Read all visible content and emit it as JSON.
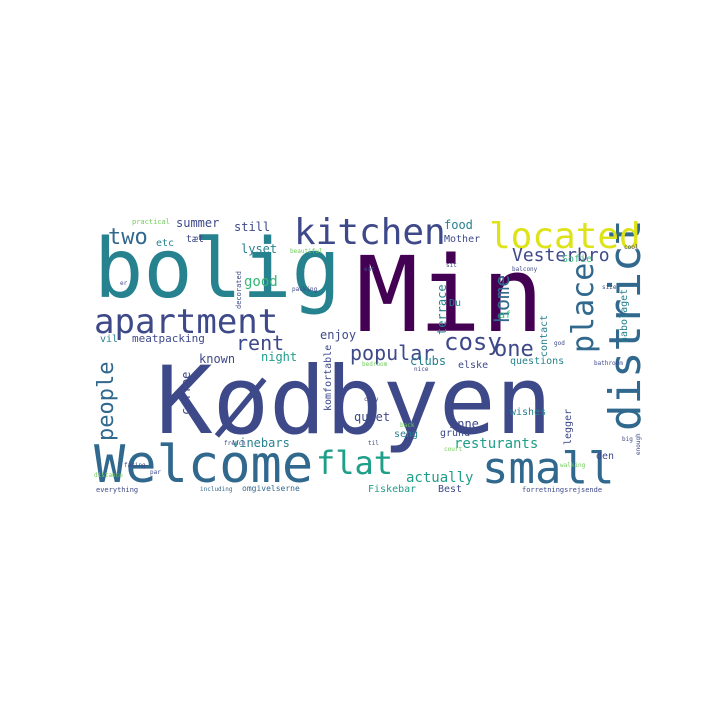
{
  "palette": {
    "deep_purple": "#440154",
    "indigo": "#3e4989",
    "blue": "#31688e",
    "teal": "#26828e",
    "green_teal": "#1f9e89",
    "green": "#35b779",
    "light_green": "#6ece58",
    "yellow": "#dde318",
    "background": "#ffffff"
  },
  "word_cloud": {
    "words": [
      {
        "text": "Kødbyen"
      },
      {
        "text": "Min"
      },
      {
        "text": "bolig"
      },
      {
        "text": "Welcome"
      },
      {
        "text": "small"
      },
      {
        "text": "district"
      },
      {
        "text": "kitchen"
      },
      {
        "text": "located"
      },
      {
        "text": "apartment"
      },
      {
        "text": "flat"
      },
      {
        "text": "place"
      },
      {
        "text": "home"
      },
      {
        "text": "cosy"
      },
      {
        "text": "one"
      },
      {
        "text": "popular"
      },
      {
        "text": "rent"
      },
      {
        "text": "two"
      },
      {
        "text": "people"
      },
      {
        "text": "Vesterbro"
      },
      {
        "text": "resturants"
      },
      {
        "text": "actually"
      },
      {
        "text": "summer"
      },
      {
        "text": "still"
      },
      {
        "text": "food"
      },
      {
        "text": "good"
      },
      {
        "text": "lyset"
      },
      {
        "text": "etc"
      },
      {
        "text": "tæt"
      },
      {
        "text": "Mother"
      },
      {
        "text": "Sofie"
      },
      {
        "text": "terrace"
      },
      {
        "text": "Du"
      },
      {
        "text": "af"
      },
      {
        "text": "contact"
      },
      {
        "text": "nabolaget"
      },
      {
        "text": "meatpacking"
      },
      {
        "text": "vil"
      },
      {
        "text": "night"
      },
      {
        "text": "known"
      },
      {
        "text": "enjoy"
      },
      {
        "text": "clubs"
      },
      {
        "text": "elske"
      },
      {
        "text": "questions"
      },
      {
        "text": "coffee"
      },
      {
        "text": "komfortable"
      },
      {
        "text": "quiet"
      },
      {
        "text": "vinebars"
      },
      {
        "text": "seng"
      },
      {
        "text": "Anne"
      },
      {
        "text": "wishes"
      },
      {
        "text": "grund"
      },
      {
        "text": "legger"
      },
      {
        "text": "den"
      },
      {
        "text": "Fiskebar"
      },
      {
        "text": "Best"
      },
      {
        "text": "omgivelserne"
      },
      {
        "text": "everything"
      },
      {
        "text": "including"
      },
      {
        "text": "forretningsrejsende"
      },
      {
        "text": "practical"
      },
      {
        "text": "decorated"
      },
      {
        "text": "packing"
      },
      {
        "text": "distance"
      },
      {
        "text": "facing"
      },
      {
        "text": "french"
      },
      {
        "text": "bedroom"
      },
      {
        "text": "bathroom"
      },
      {
        "text": "balcony"
      },
      {
        "text": "nice"
      },
      {
        "text": "cozy"
      },
      {
        "text": "enough"
      },
      {
        "text": "big"
      },
      {
        "text": "size"
      },
      {
        "text": "cool"
      },
      {
        "text": "eat"
      },
      {
        "text": "sit"
      },
      {
        "text": "god"
      },
      {
        "text": "par"
      },
      {
        "text": "er"
      },
      {
        "text": "til"
      },
      {
        "text": "back"
      },
      {
        "text": "walking"
      },
      {
        "text": "court"
      },
      {
        "text": "beautiful"
      }
    ]
  }
}
